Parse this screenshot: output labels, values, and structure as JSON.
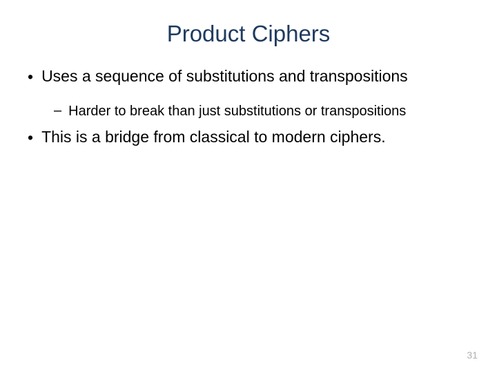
{
  "slide": {
    "title": "Product Ciphers",
    "bullets": {
      "b1": {
        "marker": "•",
        "text": "Uses a sequence of substitutions and transpositions"
      },
      "b1_sub": {
        "marker": "–",
        "text": "Harder to break than just substitutions or transpositions"
      },
      "b2": {
        "marker": "•",
        "text": "This is a bridge from classical to modern ciphers."
      }
    },
    "page_number": "31",
    "colors": {
      "title_color": "#1f3a5f",
      "text_color": "#000000",
      "page_num_color": "#b0b0b0",
      "background": "#ffffff"
    },
    "fonts": {
      "title_size": 33,
      "bullet_l1_size": 23,
      "bullet_l2_size": 20,
      "page_num_size": 14
    }
  }
}
